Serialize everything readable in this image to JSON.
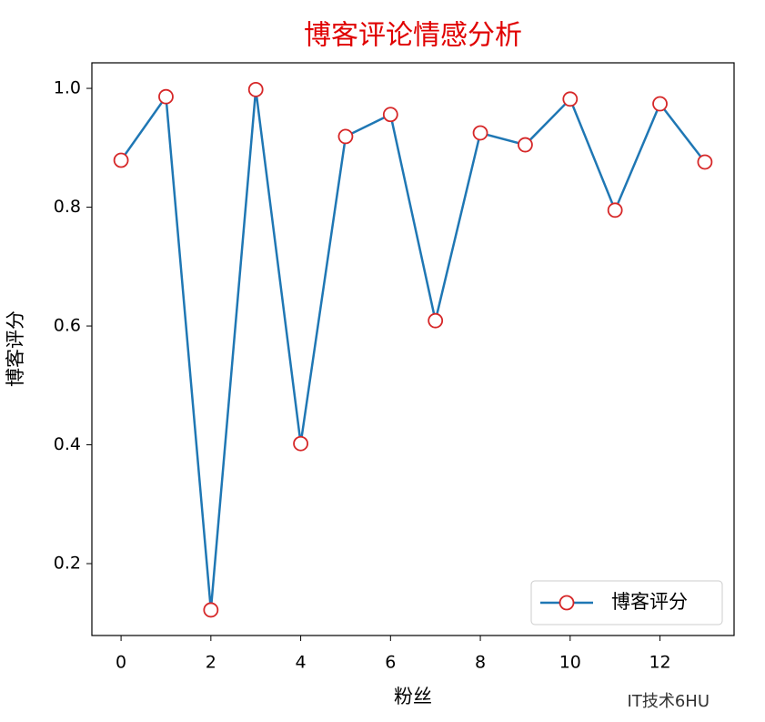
{
  "chart_data": {
    "type": "line",
    "title": "博客评论情感分析",
    "title_color": "#e00000",
    "xlabel": "粉丝",
    "ylabel": "博客评分",
    "x": [
      0,
      1,
      2,
      3,
      4,
      5,
      6,
      7,
      8,
      9,
      10,
      11,
      12,
      13
    ],
    "series": [
      {
        "name": "博客评分",
        "color": "#1f77b4",
        "marker_edge": "#d62728",
        "values": [
          0.879,
          0.986,
          0.122,
          0.998,
          0.402,
          0.919,
          0.956,
          0.609,
          0.925,
          0.905,
          0.982,
          0.795,
          0.974,
          0.876
        ]
      }
    ],
    "xlim": [
      -0.65,
      13.65
    ],
    "xticks": [
      0,
      2,
      4,
      6,
      8,
      10,
      12
    ],
    "ylim": [
      0.079,
      1.043
    ],
    "yticks": [
      {
        "value": 0.2,
        "label": "0.2"
      },
      {
        "value": 0.4,
        "label": "0.4"
      },
      {
        "value": 0.6,
        "label": "0.6"
      },
      {
        "value": 0.8,
        "label": "0.8"
      },
      {
        "value": 1.0,
        "label": "1.0"
      }
    ],
    "legend": "lower right",
    "watermark": "IT技术6HU"
  }
}
